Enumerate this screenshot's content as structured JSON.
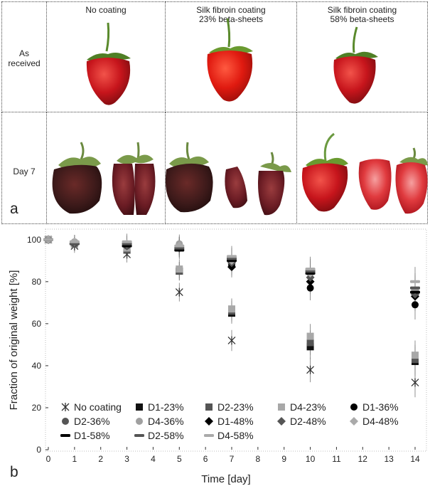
{
  "panel_a": {
    "columns": [
      {
        "line1": "No coating",
        "line2": ""
      },
      {
        "line1": "Silk fibroin coating",
        "line2": "23% beta-sheets"
      },
      {
        "line1": "Silk fibroin coating",
        "line2": "58% beta-sheets"
      }
    ],
    "rows": [
      {
        "line1": "As",
        "line2": "received"
      },
      {
        "line1": "Day 7",
        "line2": ""
      }
    ],
    "letter": "a"
  },
  "chart_data": {
    "type": "scatter",
    "panel_letter": "b",
    "xlabel": "Time [day]",
    "ylabel": "Fraction of original weight [%]",
    "xlim": [
      0,
      14
    ],
    "ylim": [
      0,
      105
    ],
    "x_ticks": [
      "0",
      "1",
      "2",
      "3",
      "4",
      "5",
      "6",
      "7",
      "8",
      "9",
      "10",
      "11",
      "12",
      "13",
      "14"
    ],
    "y_ticks": [
      "0",
      "20",
      "40",
      "60",
      "80",
      "100"
    ],
    "grid": false,
    "legend_position": "bottom-left inside",
    "x": [
      0,
      1,
      3,
      5,
      7,
      10,
      14
    ],
    "series": [
      {
        "name": "No coating",
        "marker": "star",
        "color": "#333333",
        "values": [
          100,
          97,
          93,
          75,
          52,
          38,
          32
        ]
      },
      {
        "name": "D1-23%",
        "marker": "square",
        "color": "#111111",
        "values": [
          100,
          98,
          95,
          85,
          65,
          49,
          42
        ]
      },
      {
        "name": "D2-23%",
        "marker": "square",
        "color": "#555555",
        "values": [
          100,
          98,
          95,
          85,
          66,
          51,
          43
        ]
      },
      {
        "name": "D4-23%",
        "marker": "square",
        "color": "#a8a8a8",
        "values": [
          100,
          98,
          96,
          86,
          67,
          54,
          45
        ]
      },
      {
        "name": "D1-36%",
        "marker": "circle",
        "color": "#000000",
        "values": [
          100,
          98,
          97,
          97,
          88,
          77,
          69
        ]
      },
      {
        "name": "D2-36%",
        "marker": "circle",
        "color": "#555555",
        "values": [
          100,
          98,
          97,
          97,
          90,
          84,
          74
        ]
      },
      {
        "name": "D4-36%",
        "marker": "circle",
        "color": "#a0a0a0",
        "values": [
          100,
          99,
          98,
          98,
          91,
          85,
          76
        ]
      },
      {
        "name": "D1-48%",
        "marker": "diamond",
        "color": "#000000",
        "values": [
          100,
          98,
          97,
          96,
          87,
          80,
          73
        ]
      },
      {
        "name": "D2-48%",
        "marker": "diamond",
        "color": "#555555",
        "values": [
          100,
          98,
          97,
          96,
          89,
          82,
          74
        ]
      },
      {
        "name": "D4-48%",
        "marker": "diamond",
        "color": "#aaaaaa",
        "values": [
          100,
          99,
          98,
          97,
          90,
          84,
          76
        ]
      },
      {
        "name": "D1-58%",
        "marker": "dash",
        "color": "#000000",
        "values": [
          100,
          98,
          97,
          95,
          90,
          84,
          75
        ]
      },
      {
        "name": "D2-58%",
        "marker": "dash",
        "color": "#555555",
        "values": [
          100,
          98,
          98,
          96,
          91,
          85,
          77
        ]
      },
      {
        "name": "D4-58%",
        "marker": "dash",
        "color": "#aaaaaa",
        "values": [
          100,
          99,
          99,
          97,
          92,
          86,
          80
        ]
      }
    ]
  }
}
